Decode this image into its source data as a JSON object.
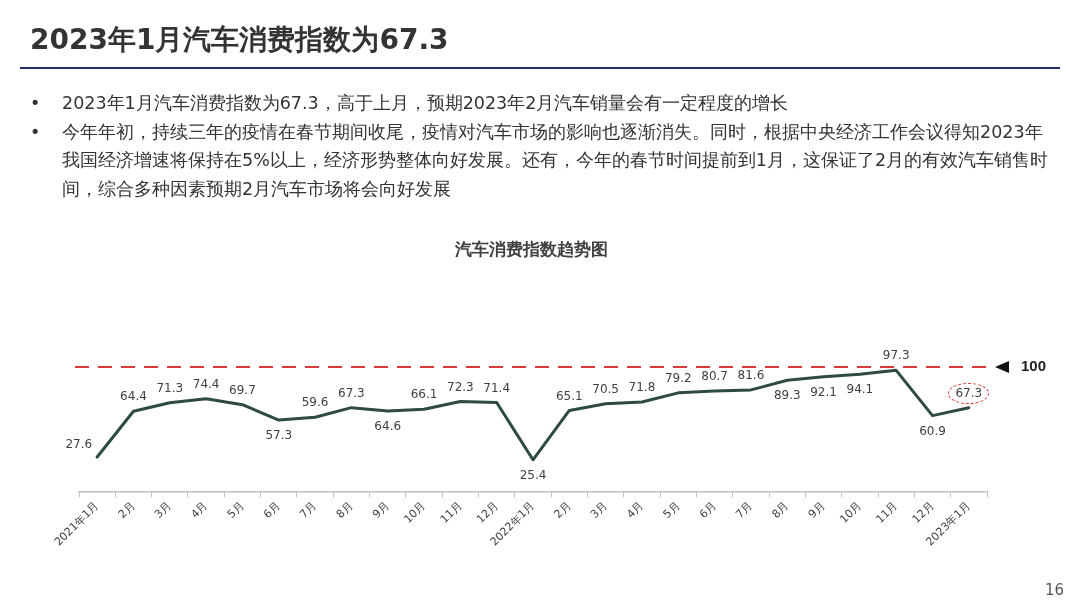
{
  "chart_data": {
    "type": "line",
    "title": "2023年1月汽车消费指数为67.3",
    "subtitle": "汽车消费指数趋势图",
    "annotations": [
      "• 2023年1月汽车消费指数为67.3，高于上月，预期2023年2月汽车销量会有一定程度的增长",
      "• 今年年初，持续三年的疫情在春节期间收尾，疫情对汽车市场的影响也逐渐消失。同时，根据中央经济工作会议得知2023年我国经济增速将保持在5%以上，经济形势整体向好发展。还有，今年的春节时间提前到1月，这保证了2月的有效汽车销售时间，综合多种因素预期2月汽车市场将会向好发展",
      "16"
    ],
    "categories": [
      "2021年1月",
      "2月",
      "3月",
      "4月",
      "5月",
      "6月",
      "7月",
      "8月",
      "9月",
      "10月",
      "11月",
      "12月",
      "2022年1月",
      "2月",
      "3月",
      "4月",
      "5月",
      "6月",
      "7月",
      "8月",
      "9月",
      "10月",
      "11月",
      "12月",
      "2023年1月"
    ],
    "values": [
      27.6,
      64.4,
      71.3,
      74.4,
      69.7,
      57.3,
      59.6,
      67.3,
      64.6,
      66.1,
      72.3,
      71.4,
      25.4,
      65.1,
      70.5,
      71.8,
      79.2,
      80.7,
      81.6,
      89.3,
      92.1,
      94.1,
      97.3,
      60.9,
      67.3
    ],
    "color": "#2e4a44",
    "ref_lines": [
      {
        "axis": "y",
        "value": 100,
        "label": "100",
        "color": "#d93a36",
        "line_style": "dashed"
      }
    ],
    "data_labels": true,
    "marker": "none",
    "tick_labels": "x"
  }
}
